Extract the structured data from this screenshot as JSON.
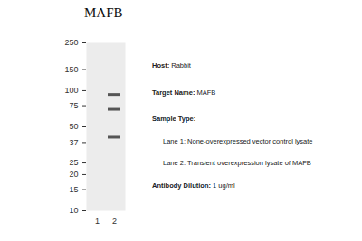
{
  "chart_data": {
    "type": "western_blot",
    "title": "MAFB",
    "categories": [
      "1",
      "2"
    ],
    "log": "y",
    "ylim": [
      10,
      250
    ],
    "yticks": [
      10,
      15,
      20,
      25,
      37,
      50,
      75,
      100,
      150,
      250
    ],
    "bands": [
      {
        "lane": "2",
        "value": 93
      },
      {
        "lane": "2",
        "value": 70
      },
      {
        "lane": "2",
        "value": 41
      }
    ],
    "annotations": [
      {
        "label": "Host:",
        "text": "Rabbit"
      },
      {
        "label": "Target Name:",
        "text": "MAFB"
      },
      {
        "label": "Sample Type:",
        "text": ""
      },
      {
        "label": "",
        "text": "Lane 1: None-overexpressed vector control lysate"
      },
      {
        "label": "",
        "text": "Lane 2: Transient overexpression lysate of MAFB"
      },
      {
        "label": "Antibody Dilution:",
        "text": "1 ug/ml"
      }
    ]
  }
}
